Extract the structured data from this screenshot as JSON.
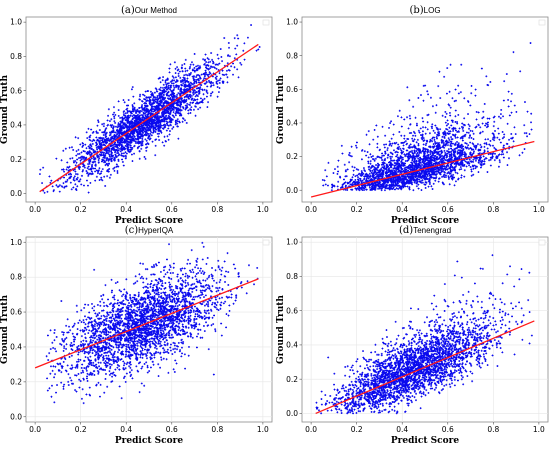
{
  "colors": {
    "points": "#0a0aee",
    "fit": "#ff1a1a"
  },
  "chart_data": [
    {
      "type": "scatter",
      "title_prefix": "(a)",
      "title": "Our Method",
      "xlabel": "Predict Score",
      "ylabel": "Ground Truth",
      "xlim": [
        -0.04,
        1.04
      ],
      "ylim": [
        -0.05,
        1.03
      ],
      "xticks": [
        0.0,
        0.2,
        0.4,
        0.6,
        0.8,
        1.0
      ],
      "yticks": [
        0.0,
        0.2,
        0.4,
        0.6,
        0.8,
        1.0
      ],
      "point_cloud": {
        "x_mean": 0.48,
        "x_sd": 0.17,
        "x_range": [
          0.0,
          1.0
        ],
        "y_noise_sd": 0.075,
        "y_range": [
          0.0,
          1.0
        ]
      },
      "fit_line": {
        "x": [
          0.02,
          0.98
        ],
        "y": [
          0.01,
          0.87
        ]
      },
      "grid": false,
      "legend": "top-right"
    },
    {
      "type": "scatter",
      "title_prefix": "(b)",
      "title": "LOG",
      "xlabel": "Predict Score",
      "ylabel": "Ground Truth",
      "xlim": [
        -0.04,
        1.04
      ],
      "ylim": [
        -0.07,
        1.03
      ],
      "xticks": [
        0.0,
        0.2,
        0.4,
        0.6,
        0.8,
        1.0
      ],
      "yticks": [
        0.0,
        0.2,
        0.4,
        0.6,
        0.8,
        1.0
      ],
      "point_cloud": {
        "x_mean": 0.45,
        "x_sd": 0.19,
        "x_range": [
          0.05,
          0.97
        ],
        "y_noise_sd": 0.05,
        "y_range": [
          0.0,
          0.9
        ],
        "skew_up": 0.12
      },
      "fit_line": {
        "x": [
          0.0,
          0.98
        ],
        "y": [
          -0.04,
          0.29
        ]
      },
      "grid": false,
      "legend": "top-right"
    },
    {
      "type": "scatter",
      "title_prefix": "(c)",
      "title": "HyperIQA",
      "xlabel": "Predict Score",
      "ylabel": "Ground Truth",
      "xlim": [
        -0.04,
        1.04
      ],
      "ylim": [
        -0.03,
        1.03
      ],
      "xticks": [
        0.0,
        0.2,
        0.4,
        0.6,
        0.8,
        1.0
      ],
      "yticks": [
        0.0,
        0.2,
        0.4,
        0.6,
        0.8,
        1.0
      ],
      "point_cloud": {
        "x_mean": 0.47,
        "x_sd": 0.18,
        "x_range": [
          0.05,
          0.98
        ],
        "y_noise_sd": 0.12,
        "y_range": [
          0.05,
          1.0
        ]
      },
      "fit_line": {
        "x": [
          0.0,
          0.98
        ],
        "y": [
          0.28,
          0.79
        ]
      },
      "grid": true,
      "legend": "top-right"
    },
    {
      "type": "scatter",
      "title_prefix": "(d)",
      "title": "Tenengrad",
      "xlabel": "Predict Score",
      "ylabel": "Ground Truth",
      "xlim": [
        -0.04,
        1.04
      ],
      "ylim": [
        -0.05,
        1.03
      ],
      "xticks": [
        0.0,
        0.2,
        0.4,
        0.6,
        0.8,
        1.0
      ],
      "yticks": [
        0.0,
        0.2,
        0.4,
        0.6,
        0.8,
        1.0
      ],
      "point_cloud": {
        "x_mean": 0.45,
        "x_sd": 0.18,
        "x_range": [
          0.02,
          0.98
        ],
        "y_noise_sd": 0.11,
        "y_range": [
          0.0,
          1.0
        ],
        "skew_up": 0.08
      },
      "fit_line": {
        "x": [
          0.02,
          0.98
        ],
        "y": [
          0.0,
          0.54
        ]
      },
      "grid": true,
      "legend": "top-right"
    }
  ]
}
